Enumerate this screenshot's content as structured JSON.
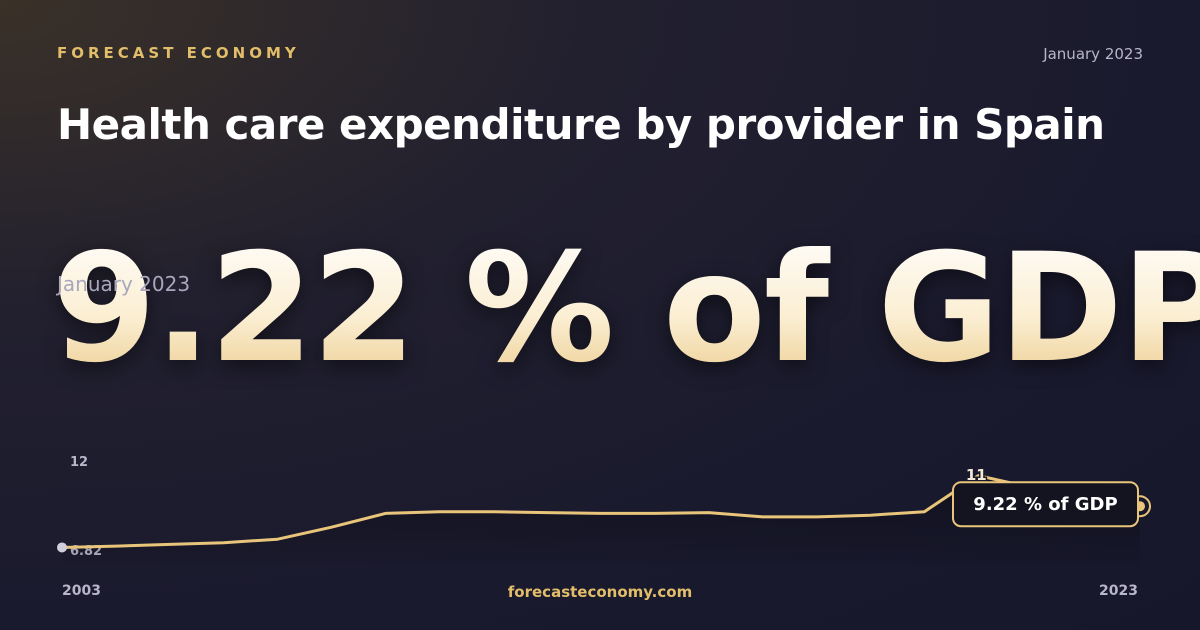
{
  "header": {
    "brand": "FORECAST ECONOMY",
    "date": "January 2023"
  },
  "title": "Health care expenditure by provider in Spain",
  "headline": {
    "date": "January 2023",
    "value": 9.22,
    "unit": "% of GDP"
  },
  "chart_data": {
    "type": "line",
    "x": [
      2003,
      2004,
      2005,
      2006,
      2007,
      2008,
      2009,
      2010,
      2011,
      2012,
      2013,
      2014,
      2015,
      2016,
      2017,
      2018,
      2019,
      2020,
      2021,
      2022,
      2023
    ],
    "values": [
      6.82,
      6.9,
      7.0,
      7.1,
      7.3,
      8.0,
      8.8,
      8.9,
      8.9,
      8.85,
      8.8,
      8.8,
      8.85,
      8.6,
      8.6,
      8.7,
      8.9,
      11,
      10.3,
      9.7,
      9.22
    ],
    "color": "#e8c57a",
    "xlim": [
      2003,
      2023
    ],
    "xticks": [
      2003,
      2023
    ],
    "ylim": [
      5.8,
      12.2
    ],
    "yticks": [
      6.82,
      12
    ],
    "peak_index": 17
  },
  "footer": "forecasteconomy.com"
}
